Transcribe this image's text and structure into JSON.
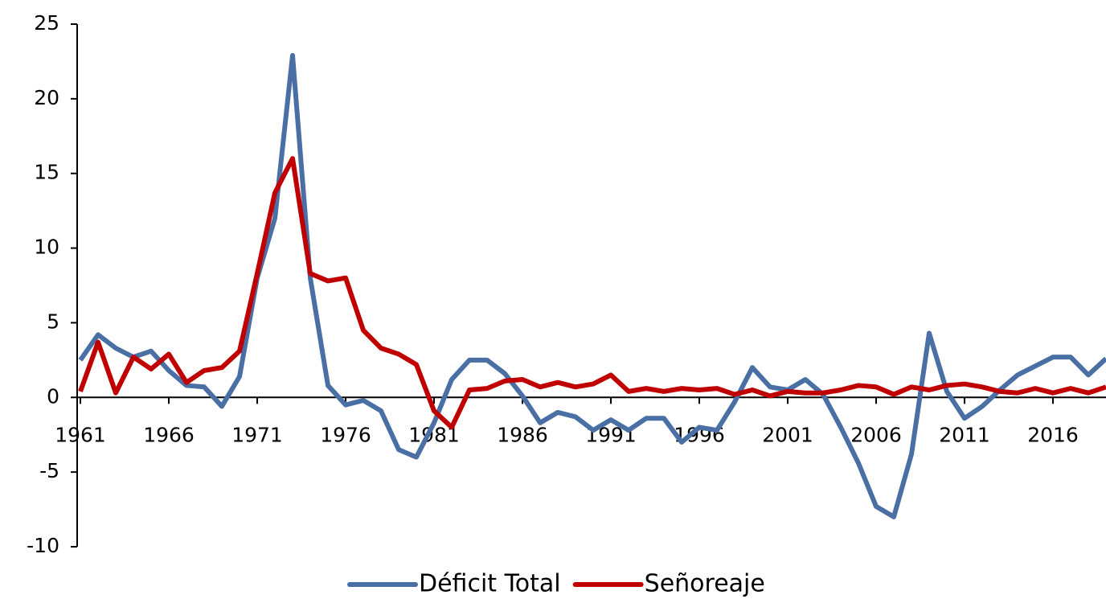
{
  "chart_data": {
    "type": "line",
    "categories": [
      "1961",
      null,
      null,
      null,
      null,
      "1966",
      null,
      null,
      null,
      null,
      "1971",
      null,
      null,
      null,
      null,
      "1976",
      null,
      null,
      null,
      null,
      "1981",
      null,
      null,
      null,
      null,
      "1986",
      null,
      null,
      null,
      null,
      "1991",
      null,
      null,
      null,
      null,
      "1996",
      null,
      null,
      null,
      null,
      "2001",
      null,
      null,
      null,
      null,
      "2006",
      null,
      null,
      null,
      null,
      "2011",
      null,
      null,
      null,
      null,
      "2016",
      null,
      null,
      null
    ],
    "series": [
      {
        "name": "Déficit Total",
        "color": "#4a6fa5",
        "values": [
          2.5,
          4.2,
          3.3,
          2.7,
          3.1,
          1.8,
          0.8,
          0.7,
          -0.6,
          1.4,
          8,
          12,
          22.9,
          8,
          0.8,
          -0.5,
          -0.2,
          -0.9,
          -3.5,
          -4,
          -1.7,
          1.2,
          2.5,
          2.5,
          1.6,
          0.1,
          -1.7,
          -1,
          -1.3,
          -2.2,
          -1.5,
          -2.2,
          -1.4,
          -1.4,
          -3,
          -2,
          -2.2,
          -0.3,
          2,
          0.7,
          0.5,
          1.2,
          0.2,
          -2,
          -4.4,
          -7.3,
          -8,
          -3.8,
          4.3,
          0.4,
          -1.4,
          -0.6,
          0.5,
          1.5,
          2.1,
          2.7,
          2.7,
          1.5,
          2.6
        ]
      },
      {
        "name": "Señoreaje",
        "color": "#c00000",
        "values": [
          0.4,
          3.7,
          0.3,
          2.7,
          1.9,
          2.9,
          1,
          1.8,
          2,
          3.1,
          8.3,
          13.7,
          16,
          8.3,
          7.8,
          8,
          4.5,
          3.3,
          2.9,
          2.2,
          -0.9,
          -2,
          0.5,
          0.6,
          1.1,
          1.2,
          0.7,
          1,
          0.7,
          0.9,
          1.5,
          0.4,
          0.6,
          0.4,
          0.6,
          0.5,
          0.6,
          0.2,
          0.5,
          0.1,
          0.4,
          0.3,
          0.3,
          0.5,
          0.8,
          0.7,
          0.2,
          0.7,
          0.5,
          0.8,
          0.9,
          0.7,
          0.4,
          0.3,
          0.6,
          0.3,
          0.6,
          0.3,
          0.7
        ]
      }
    ],
    "ylim": [
      -10,
      25
    ],
    "yticks": [
      -10,
      -5,
      0,
      5,
      10,
      15,
      20,
      25
    ],
    "grid": false,
    "legend": "bottom"
  }
}
